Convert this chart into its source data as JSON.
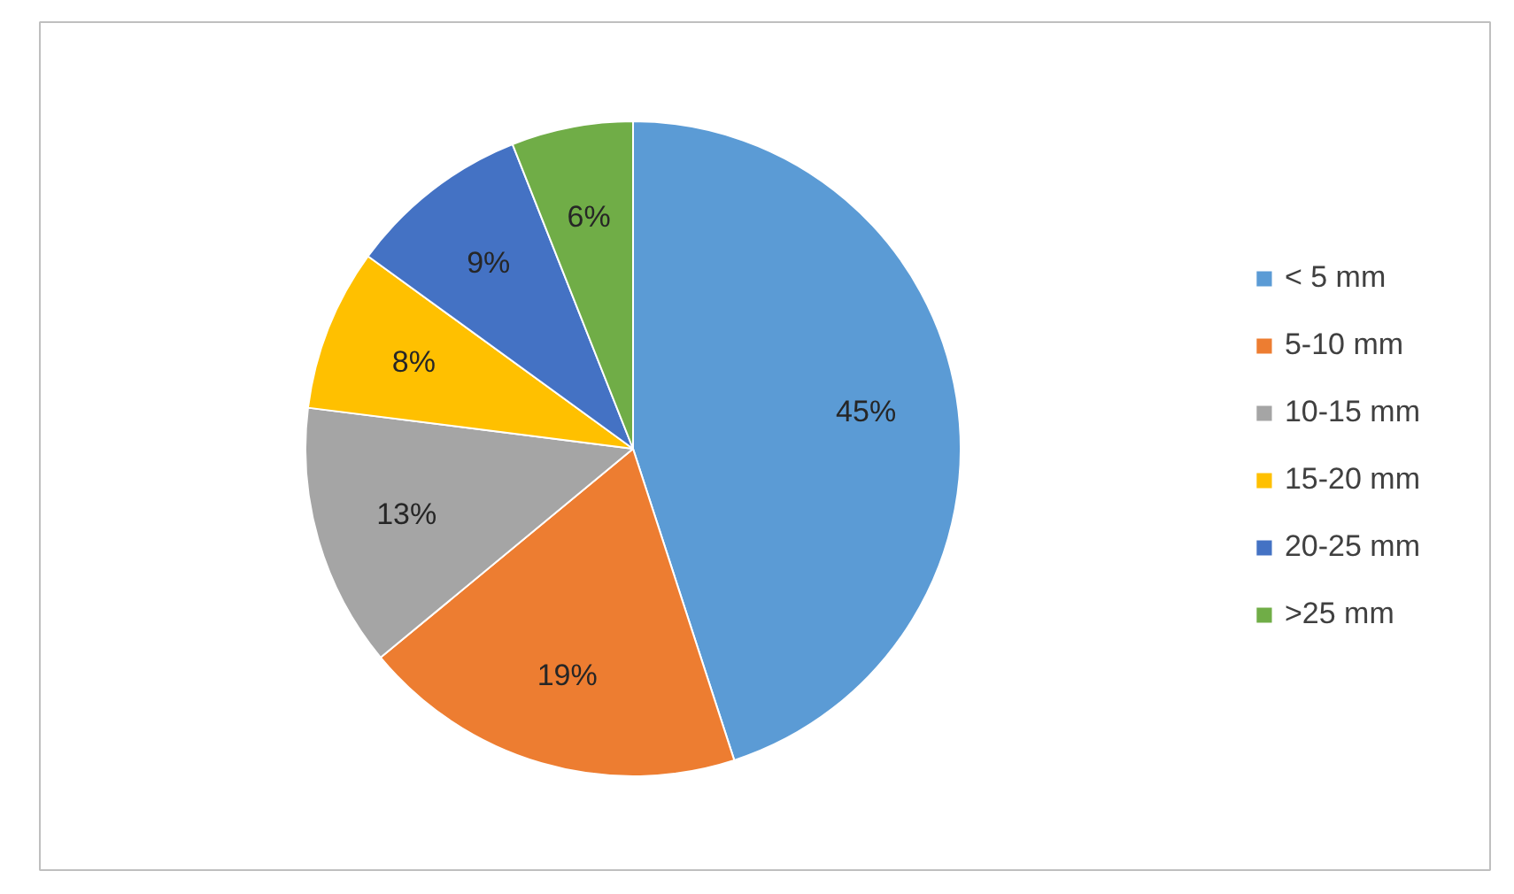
{
  "chart_data": {
    "type": "pie",
    "categories": [
      "< 5 mm",
      "5-10 mm",
      "10-15 mm",
      "15-20 mm",
      "20-25 mm",
      ">25 mm"
    ],
    "values": [
      45,
      19,
      13,
      8,
      9,
      6
    ],
    "colors": [
      "#5b9bd5",
      "#ed7d31",
      "#a5a5a5",
      "#ffc000",
      "#4472c4",
      "#70ad47"
    ],
    "value_labels": [
      "45%",
      "19%",
      "13%",
      "8%",
      "9%",
      "6%"
    ],
    "legend": "right"
  }
}
